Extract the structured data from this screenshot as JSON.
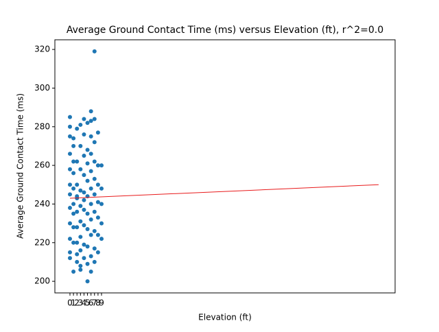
{
  "chart_data": {
    "type": "scatter",
    "title": "Average Ground Contact Time (ms) versus Elevation (ft), r^2=0.0",
    "x_label": "Elevation (ft)",
    "y_label": "Average Ground Contact Time (ms)",
    "color": "#1f77b4",
    "fit_color": "#e8191a",
    "x": [
      0,
      0,
      0,
      0,
      0,
      0,
      0,
      0,
      0,
      0,
      0,
      0,
      1,
      1,
      1,
      1,
      1,
      1,
      1,
      1,
      1,
      1,
      2,
      2,
      2,
      2,
      2,
      2,
      2,
      2,
      2,
      2,
      3,
      3,
      3,
      3,
      3,
      3,
      3,
      3,
      3,
      3,
      4,
      4,
      4,
      4,
      4,
      4,
      4,
      4,
      4,
      4,
      5,
      5,
      5,
      5,
      5,
      5,
      5,
      5,
      5,
      5,
      6,
      6,
      6,
      6,
      6,
      6,
      6,
      6,
      6,
      6,
      6,
      7,
      7,
      7,
      7,
      7,
      7,
      7,
      7,
      7,
      7,
      8,
      8,
      8,
      8,
      8,
      8,
      8,
      9,
      9,
      9,
      9,
      9
    ],
    "values": [
      285,
      280,
      275,
      266,
      258,
      250,
      245,
      238,
      230,
      222,
      215,
      212,
      205,
      220,
      235,
      248,
      256,
      262,
      270,
      274,
      240,
      228,
      279,
      262,
      250,
      243,
      236,
      228,
      220,
      214,
      210,
      244,
      281,
      270,
      258,
      247,
      239,
      231,
      223,
      216,
      208,
      206,
      284,
      276,
      265,
      255,
      246,
      237,
      229,
      219,
      212,
      242,
      200,
      218,
      227,
      235,
      244,
      252,
      261,
      268,
      282,
      209,
      288,
      283,
      275,
      266,
      257,
      248,
      240,
      232,
      224,
      213,
      205,
      319,
      284,
      272,
      262,
      253,
      245,
      236,
      226,
      217,
      210,
      277,
      260,
      250,
      241,
      233,
      224,
      215,
      260,
      248,
      240,
      230,
      222
    ],
    "fit": {
      "x": [
        0,
        88
      ],
      "values": [
        243,
        250
      ]
    },
    "xlim": [
      -4.3,
      92.7
    ],
    "xticks": [
      0,
      1,
      2,
      3,
      4,
      5,
      6,
      7,
      8,
      9
    ],
    "ylim": [
      194,
      325
    ],
    "yticks": [
      200,
      220,
      240,
      260,
      280,
      300,
      320
    ]
  }
}
